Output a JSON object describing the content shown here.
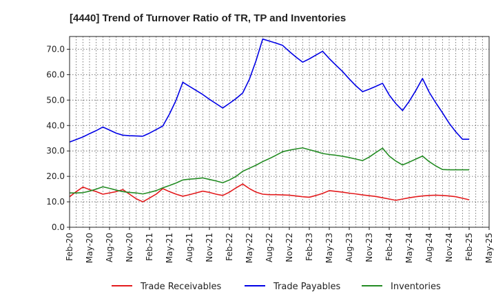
{
  "chart_data": {
    "type": "line",
    "title": "[4440]  Trend of Turnover Ratio of TR, TP and Inventories",
    "xlabel": "",
    "ylabel": "",
    "ylim": [
      0,
      75
    ],
    "yticks": [
      "0.0",
      "10.0",
      "20.0",
      "30.0",
      "40.0",
      "50.0",
      "60.0",
      "70.0"
    ],
    "ytick_values": [
      0,
      10,
      20,
      30,
      40,
      50,
      60,
      70
    ],
    "xticks": [
      "Feb-20",
      "May-20",
      "Aug-20",
      "Nov-20",
      "Feb-21",
      "May-21",
      "Aug-21",
      "Nov-21",
      "Feb-22",
      "May-22",
      "Aug-22",
      "Nov-22",
      "Feb-23",
      "May-23",
      "Aug-23",
      "Nov-23",
      "Feb-24",
      "May-24",
      "Aug-24",
      "Nov-24",
      "Feb-25",
      "May-25"
    ],
    "x": [
      "2020-02",
      "2020-03",
      "2020-04",
      "2020-05",
      "2020-06",
      "2020-07",
      "2020-08",
      "2020-09",
      "2020-10",
      "2020-11",
      "2020-12",
      "2021-01",
      "2021-02",
      "2021-03",
      "2021-04",
      "2021-05",
      "2021-06",
      "2021-07",
      "2021-08",
      "2021-09",
      "2021-10",
      "2021-11",
      "2021-12",
      "2022-01",
      "2022-02",
      "2022-03",
      "2022-04",
      "2022-05",
      "2022-06",
      "2022-07",
      "2022-08",
      "2022-09",
      "2022-10",
      "2022-11",
      "2022-12",
      "2023-01",
      "2023-02",
      "2023-03",
      "2023-04",
      "2023-05",
      "2023-06",
      "2023-07",
      "2023-08",
      "2023-09",
      "2023-10",
      "2023-11",
      "2023-12",
      "2024-01",
      "2024-02",
      "2024-03",
      "2024-04",
      "2024-05",
      "2024-06",
      "2024-07",
      "2024-08",
      "2024-09",
      "2024-10",
      "2024-11",
      "2024-12",
      "2025-01",
      "2025-02"
    ],
    "grid": true,
    "legend_position": "bottom",
    "series": [
      {
        "name": "Trade Receivables",
        "color": "#e31a1c",
        "values": [
          12.0,
          14.0,
          15.8,
          14.8,
          14.0,
          13.0,
          13.5,
          14.0,
          14.8,
          13.0,
          11.2,
          10.0,
          11.5,
          13.0,
          15.2,
          14.0,
          13.0,
          12.2,
          12.8,
          13.5,
          14.2,
          13.7,
          13.0,
          12.5,
          13.8,
          15.5,
          17.0,
          15.2,
          13.8,
          13.0,
          12.8,
          12.8,
          12.7,
          12.6,
          12.3,
          12.0,
          11.8,
          12.5,
          13.3,
          14.4,
          14.1,
          13.8,
          13.4,
          13.1,
          12.7,
          12.4,
          12.1,
          11.6,
          11.1,
          10.6,
          11.1,
          11.6,
          12.0,
          12.3,
          12.5,
          12.6,
          12.5,
          12.3,
          12.0,
          11.4,
          10.8
        ]
      },
      {
        "name": "Trade Payables",
        "color": "#0000e6",
        "values": [
          33.5,
          34.5,
          35.5,
          36.8,
          38.0,
          39.4,
          38.2,
          37.0,
          36.2,
          36.0,
          35.9,
          35.8,
          37.0,
          38.4,
          39.8,
          44.5,
          50.0,
          57.0,
          55.4,
          53.8,
          52.2,
          50.3,
          48.6,
          46.9,
          48.7,
          50.6,
          52.8,
          58.2,
          65.5,
          74.0,
          73.2,
          72.4,
          71.5,
          69.1,
          66.9,
          64.9,
          66.2,
          67.7,
          69.2,
          66.3,
          63.7,
          61.2,
          58.3,
          55.6,
          53.3,
          54.3,
          55.4,
          56.6,
          52.0,
          48.6,
          45.9,
          49.5,
          53.8,
          58.5,
          53.1,
          48.9,
          45.0,
          40.9,
          37.5,
          34.6,
          34.6
        ]
      },
      {
        "name": "Inventories",
        "color": "#228b22",
        "values": [
          13.5,
          13.5,
          13.6,
          14.2,
          15.0,
          15.9,
          15.3,
          14.6,
          14.0,
          13.7,
          13.5,
          13.1,
          13.7,
          14.4,
          15.5,
          16.4,
          17.4,
          18.6,
          18.9,
          19.1,
          19.4,
          18.8,
          18.2,
          17.5,
          18.6,
          20.0,
          22.0,
          23.2,
          24.4,
          25.8,
          27.0,
          28.3,
          29.7,
          30.3,
          30.8,
          31.2,
          30.5,
          29.8,
          29.0,
          28.6,
          28.3,
          27.9,
          27.4,
          26.8,
          26.2,
          27.6,
          29.4,
          31.1,
          28.0,
          26.0,
          24.5,
          25.6,
          26.8,
          28.0,
          25.8,
          24.1,
          22.7,
          22.6,
          22.6,
          22.6,
          22.6
        ]
      }
    ]
  }
}
